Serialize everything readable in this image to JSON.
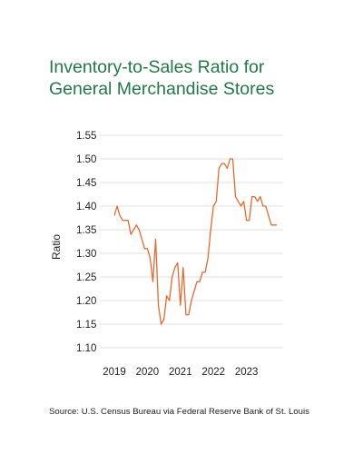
{
  "chart_data": {
    "type": "line",
    "title_lines": [
      "Inventory-to-Sales Ratio for",
      "General Merchandise Stores"
    ],
    "xlabel": "",
    "ylabel": "Ratio",
    "x_tick_labels": [
      "2019",
      "2020",
      "2021",
      "2022",
      "2023"
    ],
    "y_tick_labels": [
      "1.10",
      "1.15",
      "1.20",
      "1.25",
      "1.30",
      "1.35",
      "1.40",
      "1.45",
      "1.50",
      "1.55"
    ],
    "xlim": [
      "2019-01",
      "2023-12"
    ],
    "ylim": [
      1.1,
      1.55
    ],
    "grid": "horizontal",
    "line_color": "#e8692c",
    "grid_color": "#d6d6d6",
    "title_color": "#1f7a45",
    "series": [
      {
        "dates": [
          "2019-01",
          "2019-02",
          "2019-03",
          "2019-04",
          "2019-05",
          "2019-06",
          "2019-07",
          "2019-08",
          "2019-09",
          "2019-10",
          "2019-11",
          "2019-12",
          "2020-01",
          "2020-02",
          "2020-03",
          "2020-04",
          "2020-05",
          "2020-06",
          "2020-07",
          "2020-08",
          "2020-09",
          "2020-10",
          "2020-11",
          "2020-12",
          "2021-01",
          "2021-02",
          "2021-03",
          "2021-04",
          "2021-05",
          "2021-06",
          "2021-07",
          "2021-08",
          "2021-09",
          "2021-10",
          "2021-11",
          "2021-12",
          "2022-01",
          "2022-02",
          "2022-03",
          "2022-04",
          "2022-05",
          "2022-06",
          "2022-07",
          "2022-08",
          "2022-09",
          "2022-10",
          "2022-11",
          "2022-12",
          "2023-01",
          "2023-02",
          "2023-03",
          "2023-04",
          "2023-05",
          "2023-06",
          "2023-07",
          "2023-08",
          "2023-09",
          "2023-10",
          "2023-11",
          "2023-12"
        ],
        "values": [
          1.38,
          1.4,
          1.38,
          1.37,
          1.37,
          1.37,
          1.34,
          1.35,
          1.36,
          1.35,
          1.33,
          1.31,
          1.31,
          1.29,
          1.24,
          1.33,
          1.19,
          1.15,
          1.16,
          1.21,
          1.2,
          1.25,
          1.27,
          1.28,
          1.19,
          1.27,
          1.17,
          1.17,
          1.2,
          1.22,
          1.24,
          1.24,
          1.26,
          1.26,
          1.29,
          1.35,
          1.4,
          1.41,
          1.48,
          1.49,
          1.49,
          1.48,
          1.5,
          1.5,
          1.42,
          1.41,
          1.4,
          1.41,
          1.37,
          1.37,
          1.42,
          1.42,
          1.41,
          1.42,
          1.4,
          1.4,
          1.38,
          1.36,
          1.36,
          1.36
        ]
      }
    ]
  },
  "source": "Source: U.S. Census Bureau via Federal Reserve Bank of St. Louis"
}
